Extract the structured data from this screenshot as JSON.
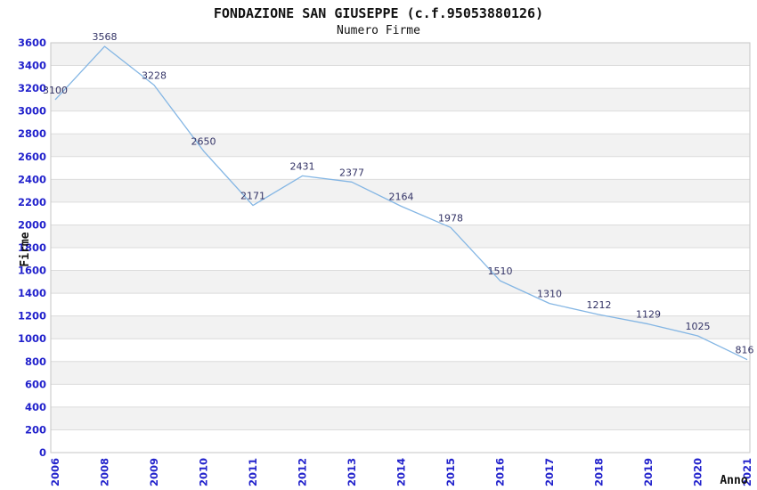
{
  "title": "FONDAZIONE SAN GIUSEPPE (c.f.95053880126)",
  "subtitle": "Numero Firme",
  "chart_data": {
    "type": "line",
    "title": "FONDAZIONE SAN GIUSEPPE (c.f.95053880126)",
    "subtitle": "Numero Firme",
    "categories": [
      "2006",
      "2008",
      "2009",
      "2010",
      "2011",
      "2012",
      "2013",
      "2014",
      "2015",
      "2016",
      "2017",
      "2018",
      "2019",
      "2020",
      "2021"
    ],
    "values": [
      3100,
      3568,
      3228,
      2650,
      2171,
      2431,
      2377,
      2164,
      1978,
      1510,
      1310,
      1212,
      1129,
      1025,
      816
    ],
    "data_labels": [
      "3100",
      "3568",
      "3228",
      "2650",
      "2171",
      "2431",
      "2377",
      "2164",
      "1978",
      "1510",
      "1310",
      "1212",
      "1129",
      "1025",
      "816"
    ],
    "xlabel": "Anno",
    "ylabel": "Firme",
    "ylim": [
      0,
      3600
    ],
    "ytick_step": 200,
    "grid": "horizontal-with-alternating-bands",
    "legend": "none",
    "colors": {
      "line": "#84b6e4",
      "tick_labels": "#2222cc",
      "data_labels": "#333366",
      "band": "#f2f2f2",
      "gridline": "#dcdcdc",
      "border": "#c6c6c6",
      "titles": "#111111"
    }
  }
}
